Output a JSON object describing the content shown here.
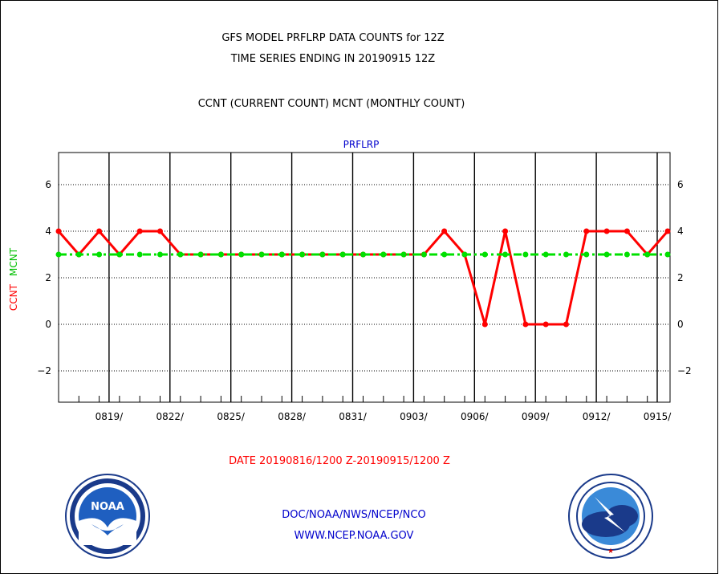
{
  "header": {
    "title_line1": "GFS MODEL PRFLRP DATA COUNTS for 12Z",
    "title_line2": "TIME SERIES ENDING IN 20190915 12Z",
    "subtitle": "CCNT (CURRENT COUNT) MCNT (MONTHLY COUNT)"
  },
  "footer": {
    "date_range": "DATE 20190816/1200 Z-20190915/1200 Z",
    "org": "DOC/NOAA/NWS/NCEP/NCO",
    "url": "WWW.NCEP.NOAA.GOV"
  },
  "logos": {
    "left": "NOAA",
    "right": "NATIONAL WEATHER SERVICE"
  },
  "colors": {
    "ccnt": "#ff0000",
    "mcnt": "#00e000",
    "text": "#000000",
    "blue": "#0000cc"
  },
  "chart_data": {
    "type": "line",
    "title": "PRFLRP",
    "ylabel_series": [
      "CCNT",
      "MCNT"
    ],
    "ylim": [
      -3.3,
      7.3
    ],
    "y_ticks": [
      -2,
      0,
      2,
      4,
      6
    ],
    "x_tick_labels": [
      "0819/",
      "0822/",
      "0825/",
      "0828/",
      "0831/",
      "0903/",
      "0906/",
      "0909/",
      "0912/",
      "0915/"
    ],
    "x_days_range": [
      0,
      30
    ],
    "grid": true,
    "series": [
      {
        "name": "CCNT",
        "values": [
          4,
          3,
          4,
          3,
          4,
          4,
          3,
          3,
          3,
          3,
          3,
          3,
          3,
          3,
          3,
          3,
          3,
          3,
          3,
          4,
          3,
          0,
          4,
          0,
          0,
          0,
          4,
          4,
          4,
          3,
          4
        ]
      },
      {
        "name": "MCNT",
        "values": [
          3,
          3,
          3,
          3,
          3,
          3,
          3,
          3,
          3,
          3,
          3,
          3,
          3,
          3,
          3,
          3,
          3,
          3,
          3,
          3,
          3,
          3,
          3,
          3,
          3,
          3,
          3,
          3,
          3,
          3,
          3
        ]
      }
    ]
  }
}
